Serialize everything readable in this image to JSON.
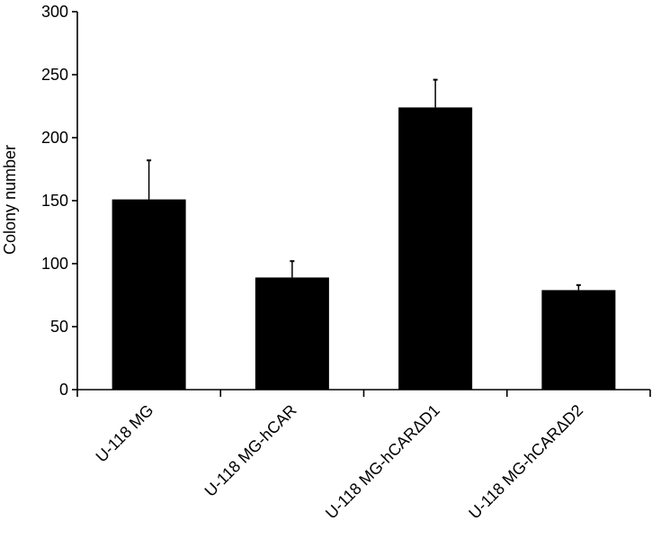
{
  "chart_data": {
    "type": "bar",
    "title": "",
    "xlabel": "",
    "ylabel": "Colony number",
    "ylim": [
      0,
      300
    ],
    "yticks": [
      0,
      50,
      100,
      150,
      200,
      250,
      300
    ],
    "categories": [
      "U-118 MG",
      "U-118 MG-hCAR",
      "U-118 MG-hCARΔD1",
      "U-118 MG-hCARΔD2"
    ],
    "values": [
      151,
      89,
      224,
      79
    ],
    "error_upper": [
      182,
      102,
      246,
      83
    ],
    "grid": false,
    "bar_color": "#000000"
  }
}
